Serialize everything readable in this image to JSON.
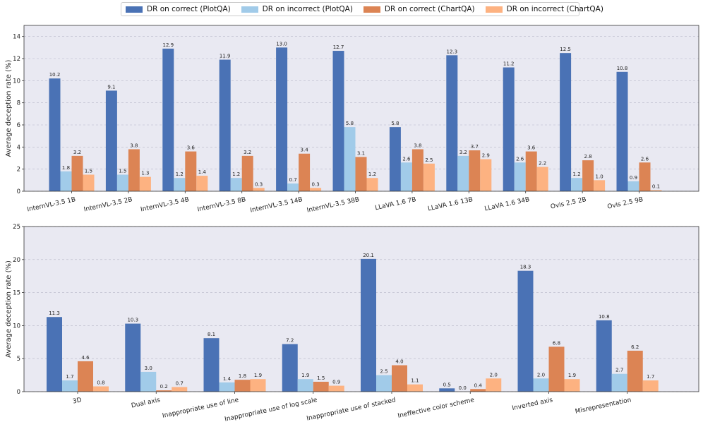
{
  "colors": {
    "plot_bg": "#e9e9f2",
    "series": [
      "#4a72b5",
      "#a1cbe9",
      "#dc8454",
      "#fdb281"
    ]
  },
  "chart_data": [
    {
      "type": "bar",
      "title": "",
      "xlabel": "",
      "ylabel": "Average deception rate (%)",
      "ylim": [
        0,
        15
      ],
      "yticks": [
        0,
        2,
        4,
        6,
        8,
        10,
        12,
        14
      ],
      "grid": true,
      "legend": "top-center",
      "categories": [
        "InternVL-3.5 1B",
        "InternVL-3.5 2B",
        "InternVL-3.5 4B",
        "InternVL-3.5 8B",
        "InternVL-3.5 14B",
        "InternVL-3.5 38B",
        "LLaVA 1.6 7B",
        "LLaVA 1.6 13B",
        "LLaVA 1.6 34B",
        "Ovis 2.5 2B",
        "Ovis 2.5 9B"
      ],
      "series": [
        {
          "name": "DR on correct (PlotQA)",
          "values": [
            10.2,
            9.1,
            12.9,
            11.9,
            13.0,
            12.7,
            5.8,
            12.3,
            11.2,
            12.5,
            10.8
          ]
        },
        {
          "name": "DR on incorrect (PlotQA)",
          "values": [
            1.8,
            1.5,
            1.2,
            1.2,
            0.7,
            5.8,
            2.6,
            3.2,
            2.6,
            1.2,
            0.9
          ]
        },
        {
          "name": "DR on correct (ChartQA)",
          "values": [
            3.2,
            3.8,
            3.6,
            3.2,
            3.4,
            3.1,
            3.8,
            3.7,
            3.6,
            2.8,
            2.6
          ]
        },
        {
          "name": "DR on incorrect (ChartQA)",
          "values": [
            1.5,
            1.3,
            1.4,
            0.3,
            0.3,
            1.2,
            2.5,
            2.9,
            2.2,
            1.0,
            0.1
          ]
        }
      ]
    },
    {
      "type": "bar",
      "title": "",
      "xlabel": "",
      "ylabel": "Average deception rate (%)",
      "ylim": [
        0,
        25
      ],
      "yticks": [
        0,
        5,
        10,
        15,
        20,
        25
      ],
      "grid": true,
      "categories": [
        "3D",
        "Dual axis",
        "Inappropriate use of line",
        "Inappropriate use of log scale",
        "Inappropriate use of stacked",
        "Ineffective color scheme",
        "Inverted axis",
        "Misrepresentation"
      ],
      "series": [
        {
          "name": "DR on correct (PlotQA)",
          "values": [
            11.3,
            10.3,
            8.1,
            7.2,
            20.1,
            0.5,
            18.3,
            10.8
          ]
        },
        {
          "name": "DR on incorrect (PlotQA)",
          "values": [
            1.7,
            3.0,
            1.4,
            1.9,
            2.5,
            0.0,
            2.0,
            2.7
          ]
        },
        {
          "name": "DR on correct (ChartQA)",
          "values": [
            4.6,
            0.2,
            1.8,
            1.5,
            4.0,
            0.4,
            6.8,
            6.2
          ]
        },
        {
          "name": "DR on incorrect (ChartQA)",
          "values": [
            0.8,
            0.7,
            1.9,
            0.9,
            1.1,
            2.0,
            1.9,
            1.7
          ]
        }
      ]
    }
  ]
}
